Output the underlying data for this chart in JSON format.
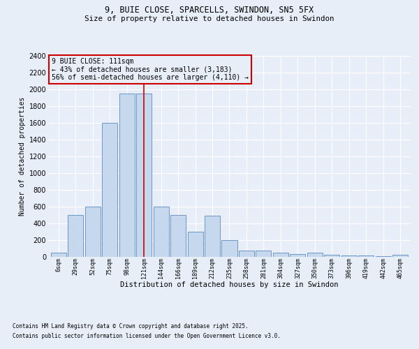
{
  "title1": "9, BUIE CLOSE, SPARCELLS, SWINDON, SN5 5FX",
  "title2": "Size of property relative to detached houses in Swindon",
  "xlabel": "Distribution of detached houses by size in Swindon",
  "ylabel": "Number of detached properties",
  "categories": [
    "6sqm",
    "29sqm",
    "52sqm",
    "75sqm",
    "98sqm",
    "121sqm",
    "144sqm",
    "166sqm",
    "189sqm",
    "212sqm",
    "235sqm",
    "258sqm",
    "281sqm",
    "304sqm",
    "327sqm",
    "350sqm",
    "373sqm",
    "396sqm",
    "419sqm",
    "442sqm",
    "465sqm"
  ],
  "values": [
    50,
    500,
    600,
    1600,
    1950,
    1950,
    600,
    500,
    300,
    490,
    200,
    75,
    75,
    45,
    30,
    45,
    20,
    15,
    10,
    5,
    20
  ],
  "bar_color": "#c5d8ee",
  "bar_edgecolor": "#5b8abf",
  "highlight_index": 5,
  "highlight_line_color": "#cc0000",
  "annotation_text": "9 BUIE CLOSE: 111sqm\n← 43% of detached houses are smaller (3,183)\n56% of semi-detached houses are larger (4,110) →",
  "annotation_box_edgecolor": "#cc0000",
  "annotation_box_facecolor": "#e8eef8",
  "ylim": [
    0,
    2400
  ],
  "yticks": [
    0,
    200,
    400,
    600,
    800,
    1000,
    1200,
    1400,
    1600,
    1800,
    2000,
    2200,
    2400
  ],
  "background_color": "#e8eef8",
  "grid_color": "#ffffff",
  "footnote1": "Contains HM Land Registry data © Crown copyright and database right 2025.",
  "footnote2": "Contains public sector information licensed under the Open Government Licence v3.0."
}
